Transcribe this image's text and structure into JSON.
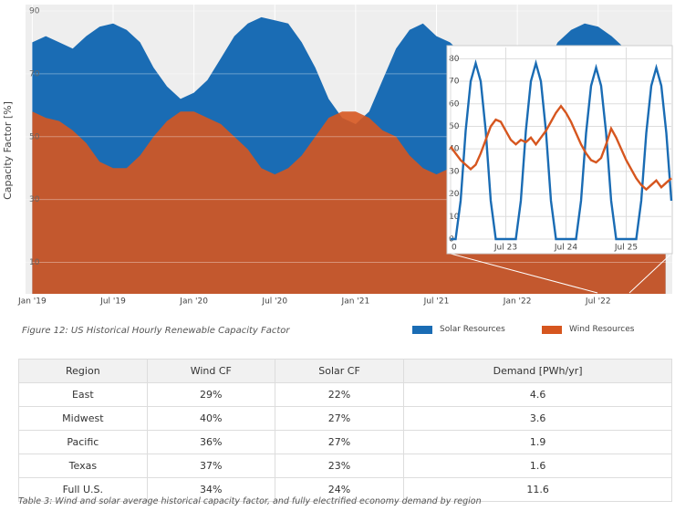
{
  "chart_data": [
    {
      "type": "area",
      "y_label": "Capacity Factor [%]",
      "categories": [
        "Jan '19",
        null,
        null,
        null,
        null,
        null,
        "Jul '19",
        null,
        null,
        null,
        null,
        null,
        "Jan '20",
        null,
        null,
        null,
        null,
        null,
        "Jul '20",
        null,
        null,
        null,
        null,
        null,
        "Jan '21",
        null,
        null,
        null,
        null,
        null,
        "Jul '21",
        null,
        null,
        null,
        null,
        null,
        "Jan '22",
        null,
        null,
        null,
        null,
        null,
        "Jul '22",
        null,
        null,
        null,
        null,
        null
      ],
      "series": [
        {
          "name": "Solar Resources",
          "color": "#1a6cb4",
          "values": [
            80,
            82,
            80,
            78,
            82,
            85,
            86,
            84,
            80,
            72,
            66,
            62,
            64,
            68,
            75,
            82,
            86,
            88,
            87,
            86,
            80,
            72,
            62,
            56,
            54,
            58,
            68,
            78,
            84,
            86,
            82,
            80,
            76,
            70,
            62,
            58,
            58,
            64,
            72,
            80,
            84,
            86,
            85,
            82,
            78,
            70,
            62,
            58
          ]
        },
        {
          "name": "Wind Resources",
          "color": "#d6561f",
          "values": [
            58,
            56,
            55,
            52,
            48,
            42,
            40,
            40,
            44,
            50,
            55,
            58,
            58,
            56,
            54,
            50,
            46,
            40,
            38,
            40,
            44,
            50,
            56,
            58,
            58,
            56,
            52,
            50,
            44,
            40,
            38,
            40,
            44,
            50,
            54,
            56,
            56,
            54,
            52,
            48,
            44,
            40,
            38,
            40,
            44,
            50,
            54,
            56
          ]
        }
      ],
      "ylim": [
        0,
        90
      ],
      "yticks": [
        10,
        30,
        50,
        70,
        90
      ],
      "grid": true
    },
    {
      "type": "line",
      "x": [
        0,
        2,
        4,
        6,
        8,
        10,
        12,
        14,
        16,
        18,
        20,
        22,
        24,
        26,
        28,
        30,
        32,
        34,
        36,
        38,
        40,
        42,
        44,
        46,
        48,
        50,
        52,
        54,
        56,
        58,
        60,
        62,
        64,
        66,
        68,
        70,
        72,
        74,
        76,
        78,
        80,
        82,
        84,
        86,
        88
      ],
      "series": [
        {
          "color": "#1a6cb4",
          "values": [
            0,
            0,
            17,
            48,
            70,
            78,
            70,
            48,
            17,
            0,
            0,
            0,
            0,
            0,
            17,
            48,
            70,
            78,
            70,
            48,
            17,
            0,
            0,
            0,
            0,
            0,
            17,
            47,
            68,
            76,
            68,
            47,
            17,
            0,
            0,
            0,
            0,
            0,
            17,
            47,
            68,
            76,
            68,
            47,
            17
          ]
        },
        {
          "color": "#d6561f",
          "values": [
            41,
            38,
            35,
            33,
            31,
            33,
            38,
            44,
            50,
            53,
            52,
            48,
            44,
            42,
            44,
            43,
            45,
            42,
            45,
            48,
            52,
            56,
            59,
            56,
            52,
            47,
            42,
            38,
            35,
            34,
            36,
            42,
            49,
            45,
            40,
            35,
            31,
            27,
            24,
            22,
            24,
            26,
            23,
            25,
            27
          ]
        }
      ],
      "xlim": [
        0,
        88
      ],
      "xticks": [
        0,
        {
          "value": 22,
          "label": "Jul 23"
        },
        {
          "value": 46,
          "label": "Jul 24"
        },
        {
          "value": 70,
          "label": "Jul 25"
        }
      ],
      "ylim": [
        0,
        85
      ],
      "yticks": [
        0,
        10,
        20,
        30,
        40,
        50,
        60,
        70,
        80
      ],
      "grid": true
    }
  ],
  "figure_caption": "Figure 12: US Historical Hourly Renewable Capacity Factor",
  "table": {
    "header": [
      "Region",
      "Wind CF",
      "Solar CF",
      "Demand [PWh/yr]"
    ],
    "rows": [
      [
        "East",
        "29%",
        "22%",
        4.6
      ],
      [
        "Midwest",
        "40%",
        "27%",
        3.6
      ],
      [
        "Pacific",
        "36%",
        "27%",
        1.9
      ],
      [
        "Texas",
        "37%",
        "23%",
        1.6
      ],
      [
        "Full U.S.",
        "34%",
        "24%",
        11.6
      ]
    ]
  },
  "table_caption": "Table 3: Wind and solar average historical capacity factor, and fully electrified economy demand by region"
}
